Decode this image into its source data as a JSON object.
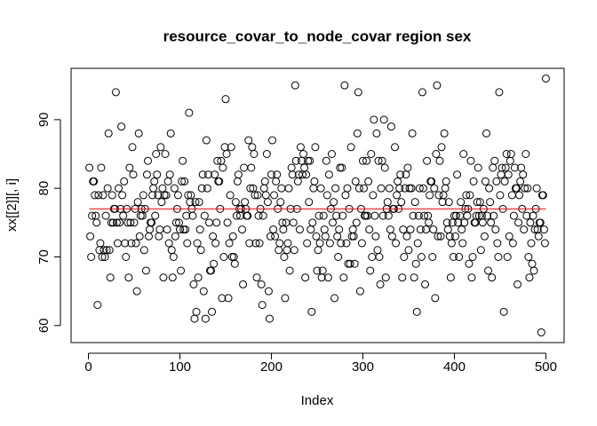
{
  "chart_data": {
    "type": "scatter",
    "title": "resource_covar_to_node_covar region sex",
    "x_label": "Index",
    "y_label": "xx[[2]][, i]",
    "x": [
      1,
      2,
      3,
      4,
      5,
      6,
      7,
      8,
      9,
      10,
      11,
      12,
      13,
      14,
      15,
      16,
      17,
      18,
      19,
      20,
      21,
      22,
      23,
      24,
      25,
      26,
      27,
      28,
      29,
      30,
      31,
      32,
      33,
      34,
      35,
      36,
      37,
      38,
      39,
      40,
      41,
      42,
      43,
      44,
      45,
      46,
      47,
      48,
      49,
      50,
      51,
      52,
      53,
      54,
      55,
      56,
      57,
      58,
      59,
      60,
      61,
      62,
      63,
      64,
      65,
      66,
      67,
      68,
      69,
      70,
      71,
      72,
      73,
      74,
      75,
      76,
      77,
      78,
      79,
      80,
      81,
      82,
      83,
      84,
      85,
      86,
      87,
      88,
      89,
      90,
      91,
      92,
      93,
      94,
      95,
      96,
      97,
      98,
      99,
      100,
      101,
      102,
      103,
      104,
      105,
      106,
      107,
      108,
      109,
      110,
      111,
      112,
      113,
      114,
      115,
      116,
      117,
      118,
      119,
      120,
      121,
      122,
      123,
      124,
      125,
      126,
      127,
      128,
      129,
      130,
      131,
      132,
      133,
      134,
      135,
      136,
      137,
      138,
      139,
      140,
      141,
      142,
      143,
      144,
      145,
      146,
      147,
      148,
      149,
      150,
      151,
      152,
      153,
      154,
      155,
      156,
      157,
      158,
      159,
      160,
      161,
      162,
      163,
      164,
      165,
      166,
      167,
      168,
      169,
      170,
      171,
      172,
      173,
      174,
      175,
      176,
      177,
      178,
      179,
      180,
      181,
      182,
      183,
      184,
      185,
      186,
      187,
      188,
      189,
      190,
      191,
      192,
      193,
      194,
      195,
      196,
      197,
      198,
      199,
      200,
      201,
      202,
      203,
      204,
      205,
      206,
      207,
      208,
      209,
      210,
      211,
      212,
      213,
      214,
      215,
      216,
      217,
      218,
      219,
      220,
      221,
      222,
      223,
      224,
      225,
      226,
      227,
      228,
      229,
      230,
      231,
      232,
      233,
      234,
      235,
      236,
      237,
      238,
      239,
      240,
      241,
      242,
      243,
      244,
      245,
      246,
      247,
      248,
      249,
      250,
      251,
      252,
      253,
      254,
      255,
      256,
      257,
      258,
      259,
      260,
      261,
      262,
      263,
      264,
      265,
      266,
      267,
      268,
      269,
      270,
      271,
      272,
      273,
      274,
      275,
      276,
      277,
      278,
      279,
      280,
      281,
      282,
      283,
      284,
      285,
      286,
      287,
      288,
      289,
      290,
      291,
      292,
      293,
      294,
      295,
      296,
      297,
      298,
      299,
      300,
      301,
      302,
      303,
      304,
      305,
      306,
      307,
      308,
      309,
      310,
      311,
      312,
      313,
      314,
      315,
      316,
      317,
      318,
      319,
      320,
      321,
      322,
      323,
      324,
      325,
      326,
      327,
      328,
      329,
      330,
      331,
      332,
      333,
      334,
      335,
      336,
      337,
      338,
      339,
      340,
      341,
      342,
      343,
      344,
      345,
      346,
      347,
      348,
      349,
      350,
      351,
      352,
      353,
      354,
      355,
      356,
      357,
      358,
      359,
      360,
      361,
      362,
      363,
      364,
      365,
      366,
      367,
      368,
      369,
      370,
      371,
      372,
      373,
      374,
      375,
      376,
      377,
      378,
      379,
      380,
      381,
      382,
      383,
      384,
      385,
      386,
      387,
      388,
      389,
      390,
      391,
      392,
      393,
      394,
      395,
      396,
      397,
      398,
      399,
      400,
      401,
      402,
      403,
      404,
      405,
      406,
      407,
      408,
      409,
      410,
      411,
      412,
      413,
      414,
      415,
      416,
      417,
      418,
      419,
      420,
      421,
      422,
      423,
      424,
      425,
      426,
      427,
      428,
      429,
      430,
      431,
      432,
      433,
      434,
      435,
      436,
      437,
      438,
      439,
      440,
      441,
      442,
      443,
      444,
      445,
      446,
      447,
      448,
      449,
      450,
      451,
      452,
      453,
      454,
      455,
      456,
      457,
      458,
      459,
      460,
      461,
      462,
      463,
      464,
      465,
      466,
      467,
      468,
      469,
      470,
      471,
      472,
      473,
      474,
      475,
      476,
      477,
      478,
      479,
      480,
      481,
      482,
      483,
      484,
      485,
      486,
      487,
      488,
      489,
      490,
      491,
      492,
      493,
      494,
      495,
      496,
      497,
      498,
      499,
      500
    ],
    "values": [
      83,
      73,
      70,
      76,
      81,
      81,
      79,
      76,
      75,
      63,
      79,
      71,
      72,
      83,
      70,
      79,
      71,
      70,
      76,
      71,
      80,
      88,
      71,
      67,
      75,
      79,
      75,
      77,
      77,
      94,
      75,
      72,
      80,
      75,
      77,
      89,
      79,
      76,
      81,
      72,
      70,
      77,
      75,
      67,
      83,
      75,
      72,
      86,
      82,
      75,
      77,
      72,
      65,
      78,
      88,
      73,
      76,
      77,
      76,
      79,
      71,
      77,
      68,
      82,
      84,
      73,
      74,
      75,
      75,
      79,
      80,
      81,
      76,
      85,
      82,
      79,
      73,
      74,
      86,
      78,
      80,
      67,
      79,
      85,
      79,
      74,
      81,
      72,
      82,
      88,
      71,
      67,
      70,
      80,
      73,
      75,
      77,
      79,
      75,
      74,
      68,
      81,
      84,
      74,
      81,
      74,
      76,
      72,
      79,
      91,
      78,
      79,
      77,
      76,
      66,
      61,
      78,
      62,
      72,
      67,
      78,
      74,
      71,
      80,
      82,
      65,
      76,
      61,
      87,
      80,
      82,
      75,
      68,
      68,
      62,
      73,
      69,
      82,
      72,
      75,
      84,
      81,
      81,
      77,
      84,
      64,
      83,
      70,
      86,
      93,
      85,
      75,
      64,
      72,
      79,
      86,
      70,
      73,
      70,
      69,
      78,
      76,
      81,
      82,
      77,
      76,
      77,
      74,
      66,
      83,
      78,
      77,
      76,
      76,
      87,
      72,
      80,
      83,
      86,
      80,
      85,
      79,
      72,
      67,
      79,
      76,
      72,
      77,
      66,
      63,
      76,
      80,
      81,
      79,
      85,
      78,
      65,
      61,
      73,
      82,
      87,
      74,
      79,
      73,
      81,
      82,
      77,
      71,
      72,
      78,
      80,
      75,
      74,
      70,
      64,
      75,
      71,
      72,
      80,
      68,
      77,
      83,
      82,
      75,
      71,
      95,
      84,
      77,
      81,
      82,
      74,
      86,
      84,
      82,
      85,
      83,
      67,
      82,
      72,
      84,
      78,
      84,
      74,
      62,
      75,
      80,
      81,
      86,
      73,
      68,
      71,
      76,
      72,
      80,
      67,
      68,
      76,
      74,
      73,
      84,
      79,
      67,
      82,
      72,
      77,
      85,
      75,
      78,
      64,
      80,
      76,
      73,
      70,
      74,
      83,
      72,
      83,
      76,
      67,
      95,
      79,
      72,
      80,
      69,
      77,
      69,
      86,
      73,
      74,
      73,
      69,
      81,
      75,
      88,
      94,
      80,
      65,
      77,
      72,
      84,
      80,
      76,
      76,
      84,
      76,
      81,
      74,
      68,
      85,
      70,
      79,
      90,
      76,
      73,
      88,
      71,
      84,
      70,
      66,
      80,
      84,
      76,
      90,
      83,
      67,
      77,
      78,
      76,
      80,
      74,
      89,
      73,
      77,
      77,
      86,
      72,
      79,
      81,
      77,
      80,
      82,
      78,
      67,
      74,
      70,
      80,
      82,
      73,
      83,
      71,
      80,
      74,
      80,
      88,
      76,
      67,
      78,
      69,
      62,
      72,
      76,
      80,
      74,
      70,
      94,
      80,
      76,
      66,
      74,
      84,
      76,
      75,
      79,
      81,
      81,
      70,
      74,
      80,
      64,
      85,
      95,
      73,
      79,
      84,
      73,
      86,
      78,
      79,
      88,
      80,
      81,
      75,
      74,
      78,
      73,
      67,
      72,
      75,
      70,
      76,
      73,
      76,
      82,
      75,
      70,
      76,
      78,
      74,
      72,
      85,
      75,
      77,
      79,
      76,
      77,
      69,
      79,
      84,
      67,
      70,
      81,
      75,
      75,
      76,
      78,
      83,
      76,
      78,
      71,
      76,
      75,
      77,
      73,
      81,
      88,
      76,
      68,
      80,
      78,
      75,
      67,
      83,
      76,
      84,
      74,
      81,
      72,
      70,
      94,
      79,
      82,
      83,
      77,
      62,
      81,
      83,
      85,
      70,
      82,
      73,
      84,
      85,
      79,
      72,
      76,
      83,
      80,
      80,
      66,
      75,
      79,
      81,
      83,
      77,
      82,
      74,
      80,
      85,
      76,
      80,
      70,
      67,
      75,
      72,
      69,
      76,
      68,
      74,
      77,
      80,
      74,
      73,
      75,
      75,
      59,
      79,
      79,
      74,
      72,
      96
    ],
    "color": "#000000",
    "reference_line": 77,
    "reference_color": "#ff0000",
    "xlim": [
      -18.96,
      519.96
    ],
    "xticks": [
      0,
      100,
      200,
      300,
      400,
      500
    ],
    "ylim": [
      57.52,
      97.48
    ],
    "yticks": [
      60,
      70,
      80,
      90
    ]
  }
}
